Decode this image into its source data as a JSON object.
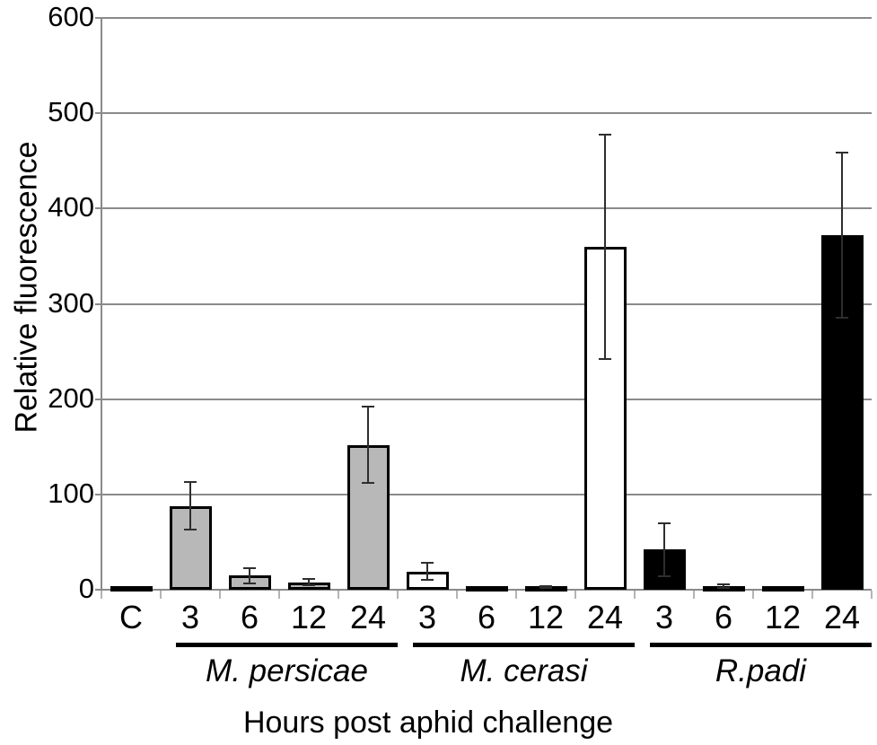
{
  "chart_data": {
    "type": "bar",
    "title": "",
    "ylabel": "Relative fluorescence",
    "xlabel": "Hours post aphid challenge",
    "ylim": [
      0,
      600
    ],
    "ytick_interval": 100,
    "grid": true,
    "legend": "none",
    "bar_colors": {
      "control": "#b8b8b8",
      "M. persicae": "#b8b8b8",
      "M. cerasi": "#ffffff",
      "R.padi": "#000000"
    },
    "bars": [
      {
        "category": "C",
        "group": "control",
        "value": 1,
        "error": 0
      },
      {
        "category": "3",
        "group": "M. persicae",
        "value": 88,
        "error": 25
      },
      {
        "category": "6",
        "group": "M. persicae",
        "value": 15,
        "error": 8
      },
      {
        "category": "12",
        "group": "M. persicae",
        "value": 8,
        "error": 3
      },
      {
        "category": "24",
        "group": "M. persicae",
        "value": 152,
        "error": 40
      },
      {
        "category": "3",
        "group": "M. cerasi",
        "value": 19,
        "error": 9
      },
      {
        "category": "6",
        "group": "M. cerasi",
        "value": 2,
        "error": 0
      },
      {
        "category": "12",
        "group": "M. cerasi",
        "value": 3,
        "error": 1
      },
      {
        "category": "24",
        "group": "M. cerasi",
        "value": 360,
        "error": 118
      },
      {
        "category": "3",
        "group": "R.padi",
        "value": 42,
        "error": 28
      },
      {
        "category": "6",
        "group": "R.padi",
        "value": 4,
        "error": 2
      },
      {
        "category": "12",
        "group": "R.padi",
        "value": 2,
        "error": 0
      },
      {
        "category": "24",
        "group": "R.padi",
        "value": 372,
        "error": 87
      }
    ],
    "group_labels": [
      {
        "name": "M. persicae",
        "italic": true,
        "first_bar": 1,
        "last_bar": 4
      },
      {
        "name": "M. cerasi",
        "italic": true,
        "first_bar": 5,
        "last_bar": 8
      },
      {
        "name": "R.padi",
        "italic": true,
        "first_bar": 9,
        "last_bar": 12
      }
    ],
    "colors": {
      "grid": "#8a8a8a",
      "axis": "#8a8a8a",
      "x_tick": "#b4b4b4",
      "error_bar": "#2e2e2e",
      "bar_border": "#000000",
      "text": "#000000"
    }
  }
}
